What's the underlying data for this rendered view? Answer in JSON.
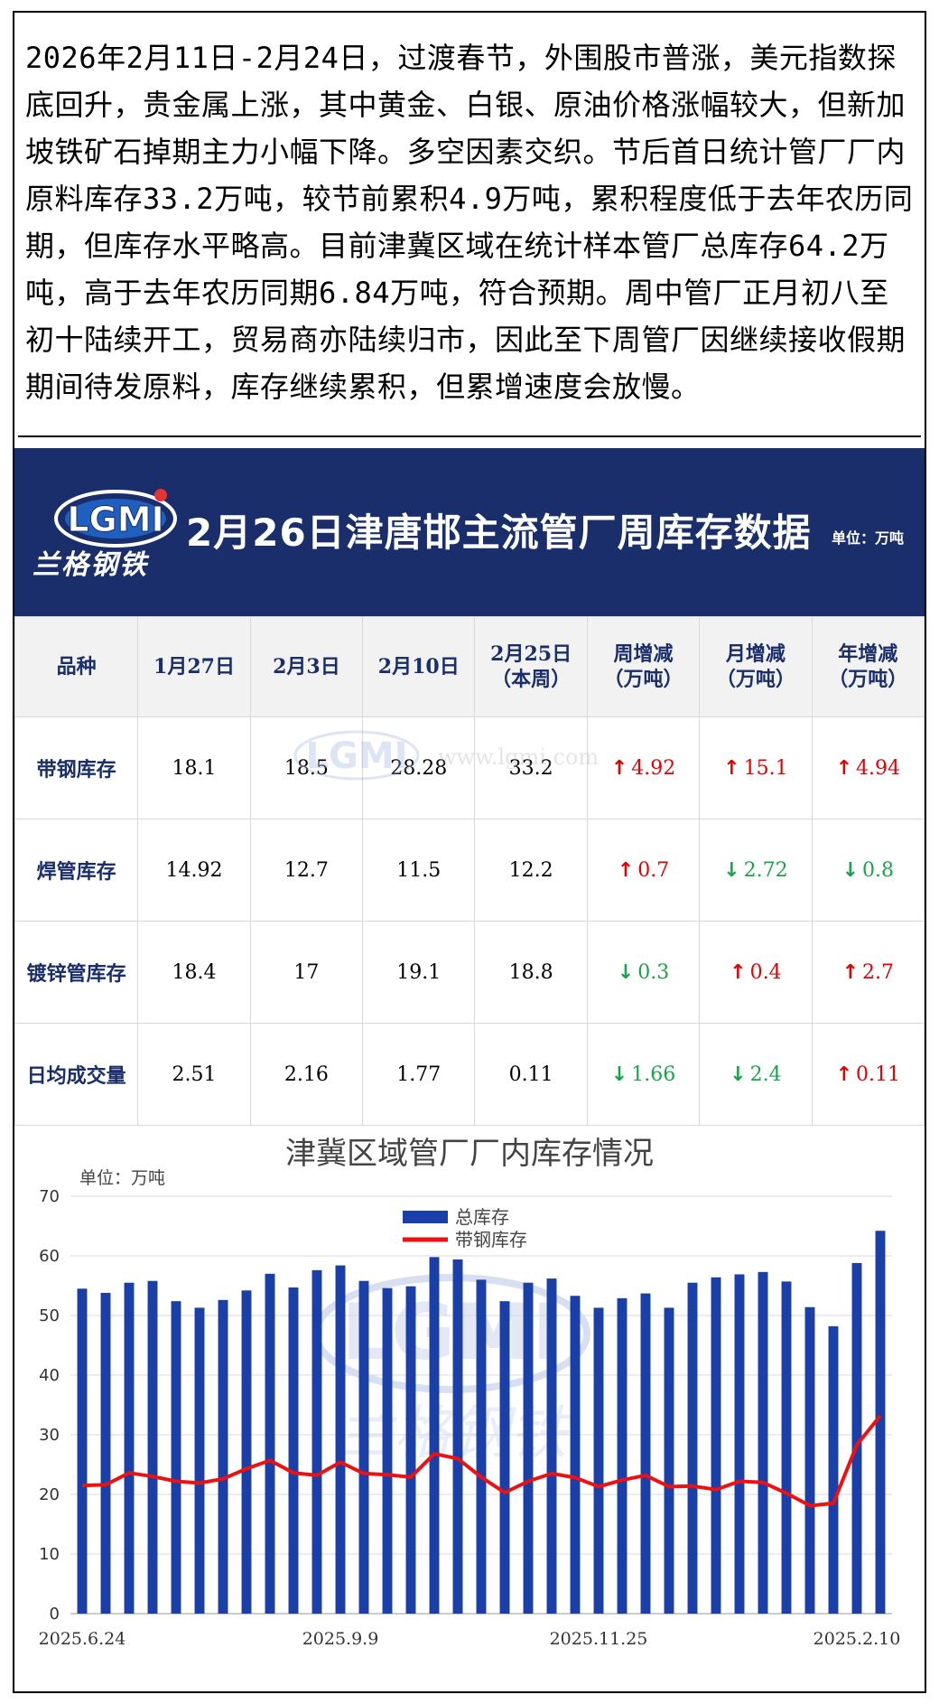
{
  "intro": {
    "text": "2026年2月11日-2月24日，过渡春节，外围股市普涨，美元指数探底回升，贵金属上涨，其中黄金、白银、原油价格涨幅较大，但新加坡铁矿石掉期主力小幅下降。多空因素交织。节后首日统计管厂厂内原料库存33.2万吨，较节前累积4.9万吨，累积程度低于去年农历同期，但库存水平略高。目前津冀区域在统计样本管厂总库存64.2万吨，高于去年农历同期6.84万吨，符合预期。周中管厂正月初八至初十陆续开工，贸易商亦陆续归市，因此至下周管厂因继续接收假期期间待发原料，库存继续累积，但累增速度会放慢。"
  },
  "banner": {
    "logo_text": "LGMI",
    "brand_text": "兰格钢铁",
    "title": "2月26日津唐邯主流管厂周库存数据",
    "unit": "单位：万吨",
    "bg_color": "#1a2e6b"
  },
  "table": {
    "headers": [
      "品种",
      "1月27日",
      "2月3日",
      "2月10日",
      "2月25日\n（本周）",
      "周增减\n（万吨）",
      "月增减\n（万吨）",
      "年增减\n（万吨）"
    ],
    "rows": [
      {
        "name": "带钢库存",
        "values": [
          "18.1",
          "18.5",
          "28.28",
          "33.2"
        ],
        "changes": [
          {
            "dir": "up",
            "value": "4.92"
          },
          {
            "dir": "up",
            "value": "15.1"
          },
          {
            "dir": "up",
            "value": "4.94"
          }
        ]
      },
      {
        "name": "焊管库存",
        "values": [
          "14.92",
          "12.7",
          "11.5",
          "12.2"
        ],
        "changes": [
          {
            "dir": "up",
            "value": "0.7"
          },
          {
            "dir": "down",
            "value": "2.72"
          },
          {
            "dir": "down",
            "value": "0.8"
          }
        ]
      },
      {
        "name": "镀锌管库存",
        "values": [
          "18.4",
          "17",
          "19.1",
          "18.8"
        ],
        "changes": [
          {
            "dir": "down",
            "value": "0.3"
          },
          {
            "dir": "up",
            "value": "0.4"
          },
          {
            "dir": "up",
            "value": "2.7"
          }
        ]
      },
      {
        "name": "日均成交量",
        "values": [
          "2.51",
          "2.16",
          "1.77",
          "0.11"
        ],
        "changes": [
          {
            "dir": "down",
            "value": "1.66"
          },
          {
            "dir": "down",
            "value": "2.4"
          },
          {
            "dir": "up",
            "value": "0.11"
          }
        ]
      }
    ],
    "up_color": "#e60000",
    "down_color": "#1aa54a",
    "watermark_logo": "LGMI",
    "watermark_url": "www.lgmi.com"
  },
  "chart_data": {
    "type": "bar+line",
    "title": "津冀区域管厂厂内库存情况",
    "unit": "单位：万吨",
    "ylim": [
      0,
      70
    ],
    "yticks": [
      0,
      10,
      20,
      30,
      40,
      50,
      60,
      70
    ],
    "x_tick_labels": [
      {
        "index": 0,
        "label": "2025.6.24"
      },
      {
        "index": 11,
        "label": "2025.9.9"
      },
      {
        "index": 22,
        "label": "2025.11.25"
      },
      {
        "index": 33,
        "label": "2025.2.10"
      }
    ],
    "legend_position": "top-center",
    "grid": "horizontal",
    "series": [
      {
        "name": "总库存",
        "kind": "bar",
        "color": "#1a3fa8",
        "values": [
          54.5,
          53.8,
          55.5,
          55.8,
          52.4,
          51.3,
          52.6,
          54.2,
          57.0,
          54.7,
          57.6,
          58.4,
          55.8,
          54.6,
          54.9,
          59.8,
          59.4,
          56.0,
          52.4,
          55.5,
          56.2,
          53.3,
          51.3,
          52.9,
          53.7,
          51.3,
          55.5,
          56.4,
          56.9,
          57.3,
          55.7,
          51.4,
          48.2,
          58.8,
          64.2
        ]
      },
      {
        "name": "带钢库存",
        "kind": "line",
        "color": "#ee1111",
        "values": [
          21.5,
          21.6,
          23.6,
          23.0,
          22.2,
          21.9,
          22.6,
          24.3,
          25.7,
          23.6,
          23.2,
          25.4,
          23.5,
          23.3,
          22.9,
          26.8,
          26.0,
          22.9,
          20.3,
          22.2,
          23.5,
          22.8,
          21.3,
          22.4,
          23.2,
          21.3,
          21.4,
          20.8,
          22.2,
          22.0,
          20.2,
          18.1,
          18.5,
          28.3,
          33.2
        ]
      }
    ],
    "watermark_logo": "LGMI",
    "watermark_brand": "兰格钢铁"
  }
}
